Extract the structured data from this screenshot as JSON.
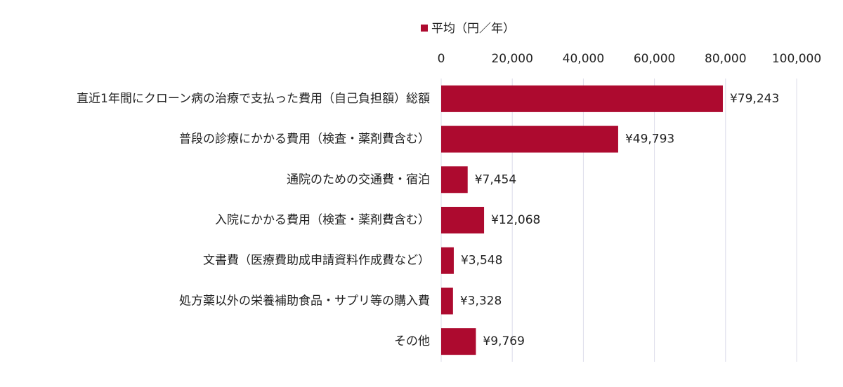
{
  "chart_data": {
    "type": "hbar",
    "categories": [
      "直近1年間にクローン病の治療で支払った費用（自己負担額）総額",
      "普段の診療にかかる費用（検査・薬剤費含む）",
      "通院のための交通費・宿泊",
      "入院にかかる費用（検査・薬剤費含む）",
      "文書費（医療費助成申請資料作成費など）",
      "処方薬以外の栄養補助食品・サプリ等の購入費",
      "その他"
    ],
    "series": [
      {
        "name": "平均（円／年）",
        "color": "#ad0a2f",
        "values": [
          79243,
          49793,
          7454,
          12068,
          3548,
          3328,
          9769
        ],
        "value_labels": [
          "¥79,243",
          "¥49,793",
          "¥7,454",
          "¥12,068",
          "¥3,548",
          "¥3,328",
          "¥9,769"
        ]
      }
    ],
    "xlim": [
      0,
      100000
    ],
    "xticks": [
      0,
      {
        "value": 20000,
        "label": "20,000"
      },
      {
        "value": 40000,
        "label": "40,000"
      },
      {
        "value": 60000,
        "label": "60,000"
      },
      {
        "value": 80000,
        "label": "80,000"
      },
      {
        "value": 100000,
        "label": "100,000"
      }
    ],
    "grid": true,
    "legend": "top"
  }
}
